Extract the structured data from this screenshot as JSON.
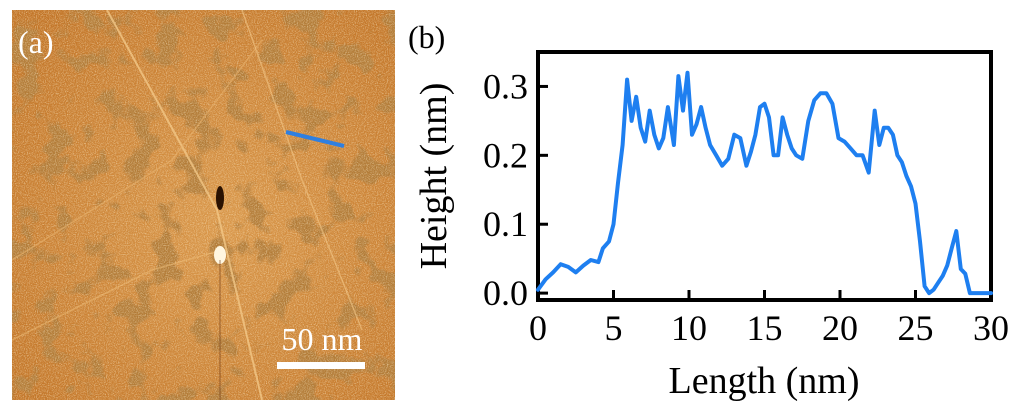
{
  "panel_a": {
    "label": "(a)",
    "scale_bar_label": "50 nm",
    "colors": {
      "base": "#c47a2e",
      "light": "#f0c078",
      "dark": "#7a3c0c",
      "profile_line": "#2f7fe0",
      "scale_bar": "#ffffff"
    }
  },
  "panel_b": {
    "label": "(b)"
  },
  "chart_data": {
    "type": "line",
    "title": "",
    "xlabel": "Length (nm)",
    "ylabel": "Height (nm)",
    "xlim": [
      0,
      30
    ],
    "ylim": [
      -0.01,
      0.35
    ],
    "xticks": [
      0,
      5,
      10,
      15,
      20,
      25,
      30
    ],
    "xtick_labels": [
      "0",
      "5",
      "10",
      "15",
      "20",
      "25",
      "30"
    ],
    "yticks": [
      0.0,
      0.1,
      0.2,
      0.3
    ],
    "ytick_labels": [
      "0.0",
      "0.1",
      "0.2",
      "0.3"
    ],
    "grid": false,
    "legend": "none",
    "line_color": "#1e7ff0",
    "series": [
      {
        "name": "height profile",
        "x": [
          0,
          0.5,
          1.0,
          1.5,
          2.0,
          2.5,
          3.0,
          3.5,
          4.0,
          4.3,
          4.7,
          5.0,
          5.3,
          5.6,
          5.9,
          6.2,
          6.5,
          6.8,
          7.1,
          7.4,
          7.7,
          8.0,
          8.3,
          8.6,
          9.0,
          9.3,
          9.6,
          9.9,
          10.2,
          10.5,
          10.8,
          11.1,
          11.4,
          11.8,
          12.2,
          12.6,
          13.0,
          13.4,
          13.8,
          14.1,
          14.4,
          14.7,
          15.0,
          15.3,
          15.6,
          15.9,
          16.2,
          16.5,
          16.8,
          17.1,
          17.5,
          17.9,
          18.3,
          18.7,
          19.1,
          19.5,
          19.9,
          20.3,
          20.7,
          21.1,
          21.5,
          21.9,
          22.3,
          22.6,
          22.9,
          23.2,
          23.5,
          23.8,
          24.1,
          24.4,
          24.7,
          25.0,
          25.3,
          25.6,
          25.9,
          26.2,
          26.5,
          26.8,
          27.1,
          27.4,
          27.7,
          28.0,
          28.3,
          28.6,
          28.9,
          29.2,
          29.5,
          29.8,
          30.0
        ],
        "values": [
          0.005,
          0.02,
          0.03,
          0.042,
          0.038,
          0.03,
          0.04,
          0.048,
          0.045,
          0.065,
          0.075,
          0.1,
          0.16,
          0.215,
          0.31,
          0.25,
          0.285,
          0.24,
          0.22,
          0.265,
          0.23,
          0.21,
          0.225,
          0.27,
          0.215,
          0.315,
          0.265,
          0.32,
          0.23,
          0.245,
          0.27,
          0.24,
          0.215,
          0.2,
          0.185,
          0.195,
          0.23,
          0.225,
          0.185,
          0.205,
          0.23,
          0.27,
          0.275,
          0.255,
          0.2,
          0.2,
          0.255,
          0.23,
          0.21,
          0.2,
          0.195,
          0.25,
          0.28,
          0.29,
          0.29,
          0.275,
          0.225,
          0.22,
          0.21,
          0.2,
          0.2,
          0.175,
          0.265,
          0.215,
          0.24,
          0.24,
          0.23,
          0.2,
          0.19,
          0.17,
          0.155,
          0.13,
          0.075,
          0.01,
          0.0,
          0.005,
          0.015,
          0.025,
          0.04,
          0.065,
          0.09,
          0.035,
          0.028,
          0.0,
          0.0,
          0.0,
          0.0,
          0.0,
          0.0
        ]
      }
    ]
  }
}
